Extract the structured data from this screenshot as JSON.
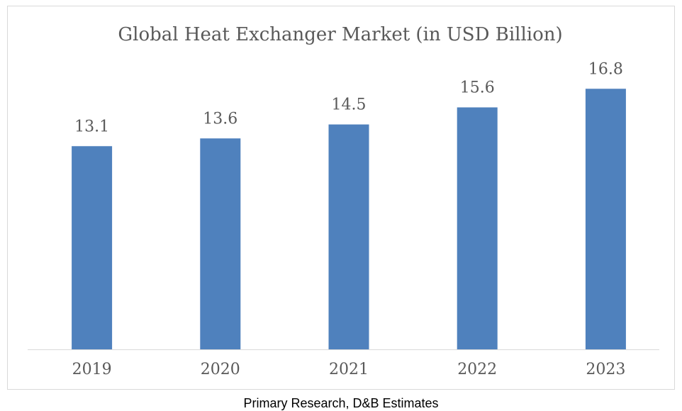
{
  "chart_data": {
    "type": "bar",
    "title": "Global Heat Exchanger Market (in USD Billion)",
    "categories": [
      "2019",
      "2020",
      "2021",
      "2022",
      "2023"
    ],
    "values": [
      13.1,
      13.6,
      14.5,
      15.6,
      16.8
    ],
    "color": "#4f81bd",
    "ylim": [
      0,
      18
    ],
    "source": "Primary Research, D&B Estimates"
  }
}
